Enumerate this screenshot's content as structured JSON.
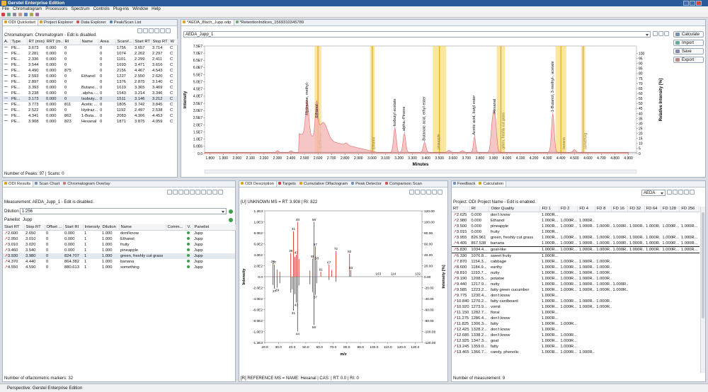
{
  "app": {
    "title": "Gerstel Enterprise Edition"
  },
  "menu": [
    "File",
    "Chromatogram",
    "Processors",
    "Spectrum",
    "Controls",
    "Plug-ins",
    "Window",
    "Help"
  ],
  "tl": {
    "tabs": [
      "ODI Quickstart",
      "Project Explorer",
      "Data Explorer",
      "Peak/Scan List"
    ],
    "info": "Chromatogram: Chromatogram - Edit is disabled.",
    "cols": [
      "A.",
      "Type",
      "RT (min)",
      "RRT (m...",
      "RI",
      "Name",
      "Area",
      "Scan#...",
      "Start RT",
      "Stop RT",
      "W"
    ],
    "rows": [
      [
        "",
        "PE...",
        "3.673",
        "0.000",
        "0",
        "",
        "0",
        "1756",
        "3.657",
        "3.714",
        "C"
      ],
      [
        "",
        "PE...",
        "2.281",
        "0.000",
        "0",
        "",
        "0",
        "1074",
        "2.262",
        "2.297",
        "C"
      ],
      [
        "",
        "PE...",
        "2.336",
        "0.000",
        "0",
        "",
        "0",
        "1101",
        "2.299",
        "2.411",
        "C"
      ],
      [
        "",
        "PE...",
        "3.544",
        "0.000",
        "0",
        "",
        "0",
        "1693",
        "3.471",
        "3.616",
        "C"
      ],
      [
        "",
        "PE...",
        "4.490",
        "0.000",
        "875",
        "",
        "0",
        "2156",
        "4.467",
        "4.543",
        "C"
      ],
      [
        "",
        "PE...",
        "2.593",
        "0.000",
        "0",
        "Ethanol",
        "0",
        "1227",
        "2.550",
        "2.620",
        "C"
      ],
      [
        "",
        "PE...",
        "2.897",
        "0.000",
        "0",
        "",
        "0",
        "1376",
        "2.875",
        "3.140",
        "C"
      ],
      [
        "",
        "PE...",
        "3.393",
        "0.000",
        "0",
        "Butano...",
        "0",
        "1619",
        "3.365",
        "3.469",
        "C"
      ],
      [
        "",
        "PE...",
        "3.238",
        "0.000",
        "0",
        ".alpha.-...",
        "0",
        "1543",
        "3.214",
        "3.346",
        "C"
      ],
      [
        "",
        "PE...",
        "3.173",
        "0.000",
        "0",
        "Isobuty...",
        "0",
        "1511",
        "3.146",
        "3.212",
        "C"
      ],
      [
        "",
        "PE...",
        "3.773",
        "0.000",
        "811",
        "Acetic ...",
        "0",
        "1805",
        "3.742",
        "3.845",
        "C"
      ],
      [
        "",
        "PE...",
        "2.522",
        "0.000",
        "0",
        "Hydraz...",
        "0",
        "1192",
        "2.497",
        "2.538",
        "C"
      ],
      [
        "",
        "PE...",
        "4.341",
        "0.000",
        "862",
        "1-Buta...",
        "0",
        "2083",
        "4.306",
        "4.453",
        "C"
      ],
      [
        "",
        "PE...",
        "3.908",
        "0.000",
        "823",
        "Hexanal",
        "0",
        "1871",
        "3.875",
        "4.059",
        "C"
      ]
    ],
    "footer": "Number of Peaks: 97 | Scans: 0"
  },
  "chrom": {
    "tabs": [
      "*AEDA_8fach_Jupp.odp",
      "*RetentionIndices_1569310345789"
    ],
    "combo": "AEDA_Jupp_1",
    "buttons": [
      "Calculate",
      "Import",
      "Save",
      "Export"
    ],
    "ylabel": "Intensity",
    "y2label": "Relative Intensity [%]",
    "xlabel": "Minutes",
    "yticks": [
      "0.0",
      "5.0E6",
      "1.0E7",
      "1.5E7",
      "2.0E7",
      "2.5E7",
      "3.0E7",
      "3.5E7",
      "4.0E7",
      "4.5E7",
      "5.0E7",
      "5.5E7",
      "6.0E7",
      "6.5E7",
      "7.0E7",
      "7.5E7"
    ],
    "y2ticks": [
      "0",
      "5",
      "10",
      "15",
      "20",
      "25",
      "30",
      "35",
      "40",
      "45",
      "50",
      "55",
      "60",
      "65",
      "70",
      "75",
      "80",
      "85",
      "90",
      "95",
      "100"
    ],
    "xticks": [
      "1.800",
      "1.900",
      "2.000",
      "2.100",
      "2.200",
      "2.300",
      "2.400",
      "2.500",
      "2.600",
      "2.700",
      "2.800",
      "2.900",
      "3.000",
      "3.100",
      "3.200",
      "3.300",
      "3.400",
      "3.500",
      "3.600",
      "3.700",
      "3.800",
      "3.900",
      "4.000",
      "4.100",
      "4.200",
      "4.300",
      "4.400",
      "4.500",
      "4.600",
      "4.700",
      "4.800",
      "4.900"
    ],
    "labels": [
      "Hydrazine, methyl-",
      "Ethanol",
      "Isobutyl acetate",
      ".alpha.-Pinene",
      "Butanoic acid, ethyl ester",
      "Acetic acid, butyl ester",
      "Hexanal",
      "1-Butanol, 3-methyl-, acetate"
    ],
    "odor": [
      "dont'know",
      "Ethanol",
      "pineapple",
      "fruity",
      "green, freshly cut grass",
      "banana",
      "something"
    ]
  },
  "odi": {
    "tabs": [
      "ODI Results",
      "Scan Chart",
      "Chromatogram Overlay"
    ],
    "info": "Measurement: AEDA_Jupp_1 - Edit is disabled.",
    "dilution_label": "Dilution",
    "dilution": "1:256",
    "panelist_label": "Panelist",
    "panelist": "Jupp",
    "cols": [
      "Start RT",
      "Stop RT",
      "Offset ...",
      "Start RI",
      "Intensity",
      "Dilution",
      "Name",
      "Comm...",
      "V.",
      "Panelist"
    ],
    "rows": [
      [
        "2.600",
        "2.650",
        "0",
        "0.000",
        "1",
        "1.000",
        "dont'know",
        "",
        "",
        "Jupp"
      ],
      [
        "2.950",
        "3.010",
        "0",
        "0.000",
        "1",
        "1.000",
        "Ethanol",
        "",
        "",
        "Jupp"
      ],
      [
        "3.010",
        "3.020",
        "0",
        "0.000",
        "1",
        "1.000",
        "fruity",
        "",
        "",
        "Jupp"
      ],
      [
        "3.460",
        "3.540",
        "0",
        "0.000",
        "1",
        "1.000",
        "pineapple",
        "",
        "",
        "Jupp"
      ],
      [
        "3.930",
        "3.980",
        "0",
        "824.707",
        "1",
        "1.000",
        "green, freshly cut grass",
        "",
        "",
        "Jupp"
      ],
      [
        "4.370",
        "4.440",
        "0",
        "864.382",
        "1",
        "1.000",
        "banana",
        "",
        "",
        "Jupp"
      ],
      [
        "4.550",
        "4.590",
        "0",
        "880.613",
        "1",
        "1.000",
        "something",
        "",
        "",
        "Jupp"
      ]
    ],
    "footer": "Number of olfactometric markers: 32"
  },
  "ms": {
    "tabs": [
      "ODI Description",
      "Targets",
      "Cumulative Olfactogram",
      "Peak Detector",
      "Comparison Scan"
    ],
    "info": "[U] UNKNOWN MS = RT: 3.908 | RI: 822",
    "ylabel": "Intensity",
    "y2label": "Intensity [%]",
    "xlabel": "m/z",
    "yticks": [
      "1.2E3",
      "1.0E3",
      "8.0E2",
      "6.0E2",
      "4.0E2",
      "2.0E2",
      "0.0",
      "-2.0E2",
      "-4.0E2",
      "-6.0E2",
      "-8.0E2",
      "-1.0E3",
      "-1.2E3"
    ],
    "y2ticks": [
      "120.00",
      "100.00",
      "80.00",
      "60.00",
      "40.00",
      "20.00",
      "0.00",
      "-20.00",
      "-40.00",
      "-60.00",
      "-80.00",
      "-100.00",
      "-120.00"
    ],
    "xticks": [
      "20.0",
      "30.0",
      "40.0",
      "50.0",
      "60.0",
      "70.0",
      "80.0",
      "90.0",
      "100.0",
      "110.0",
      "120.0",
      "130.0"
    ],
    "upper": [
      {
        "mz": 26,
        "v": 240,
        "l": "26"
      },
      {
        "mz": 27,
        "v": 220,
        "l": "27"
      },
      {
        "mz": 29,
        "v": 130
      },
      {
        "mz": 31,
        "v": 90
      },
      {
        "mz": 39,
        "v": 430,
        "l": "39"
      },
      {
        "mz": 41,
        "v": 830,
        "l": "41"
      },
      {
        "mz": 42,
        "v": 360
      },
      {
        "mz": 43,
        "v": 400,
        "l": "43"
      },
      {
        "mz": 44,
        "v": 1000,
        "l": "44"
      },
      {
        "mz": 45,
        "v": 320
      },
      {
        "mz": 53,
        "v": 110
      },
      {
        "mz": 55,
        "v": 330,
        "l": "55"
      },
      {
        "mz": 56,
        "v": 1000,
        "l": "56"
      },
      {
        "mz": 57,
        "v": 550,
        "l": "57"
      },
      {
        "mz": 58,
        "v": 300,
        "l": "58"
      },
      {
        "mz": 61,
        "v": 90,
        "l": "61"
      },
      {
        "mz": 67,
        "v": 220,
        "l": "67"
      },
      {
        "mz": 69,
        "v": 120
      },
      {
        "mz": 72,
        "v": 470,
        "l": "72"
      },
      {
        "mz": 82,
        "v": 420,
        "l": "82"
      },
      {
        "mz": 83,
        "v": 120,
        "l": "83"
      },
      {
        "mz": 103,
        "v": 10,
        "l": "103"
      },
      {
        "mz": 114,
        "v": 10,
        "l": "114"
      },
      {
        "mz": 132,
        "v": 10,
        "l": "132"
      }
    ],
    "lower": [
      {
        "mz": 26,
        "v": -150
      },
      {
        "mz": 27,
        "v": -220,
        "l": "27"
      },
      {
        "mz": 29,
        "v": -200,
        "l": "29"
      },
      {
        "mz": 31,
        "v": -120
      },
      {
        "mz": 39,
        "v": -290
      },
      {
        "mz": 40,
        "v": -230
      },
      {
        "mz": 41,
        "v": -620,
        "l": "41"
      },
      {
        "mz": 42,
        "v": -320
      },
      {
        "mz": 43,
        "v": -470,
        "l": "43"
      },
      {
        "mz": 44,
        "v": -1000,
        "l": "44"
      },
      {
        "mz": 45,
        "v": -160
      },
      {
        "mz": 53,
        "v": -140
      },
      {
        "mz": 55,
        "v": -280
      },
      {
        "mz": 56,
        "v": -880,
        "l": "56"
      },
      {
        "mz": 57,
        "v": -330,
        "l": "57"
      },
      {
        "mz": 58,
        "v": -120
      },
      {
        "mz": 67,
        "v": -60
      },
      {
        "mz": 72,
        "v": -90
      }
    ],
    "footer": "[R] REFERENCE MS = NAME: Hexanal | CAS: | RT: 0.0 | RI: 0"
  },
  "fb": {
    "tabs": [
      "Feedback",
      "Calculation"
    ],
    "combo": "AEDA",
    "info": "Project: ODI Project Name - Edit is enabled.",
    "cols": [
      "RT",
      "RI",
      "Odor Quality",
      "FD 1",
      "FD 2",
      "FD 4",
      "FD 8",
      "FD 16",
      "FD 32",
      "FD 64",
      "FD 128",
      "FD 256"
    ],
    "rows": [
      [
        "2.625",
        "0.000",
        "don't know",
        "1.000R...",
        "",
        "",
        "",
        "",
        "",
        "",
        "",
        ""
      ],
      [
        "2.980",
        "0.000",
        "Ethanol",
        "1.000R...",
        "1.000R...",
        "1.000R...",
        "",
        "",
        "",
        "",
        "",
        ""
      ],
      [
        "3.500",
        "0.000",
        "pineapple",
        "1.000R...",
        "1.000R...",
        "1.000R...",
        "1.000R...",
        "1.000R...",
        "1.000R...",
        "1.000R...",
        "1.000R...",
        "1.000R..."
      ],
      [
        "3.015",
        "0.000",
        "fruity",
        "1.000R...",
        "",
        "",
        "",
        "",
        "",
        "",
        "",
        ""
      ],
      [
        "3.955",
        "826.961",
        "green, freshly cut grass",
        "1.000R...",
        "1.000R...",
        "1.000R...",
        "1.000R...",
        "1.000R...",
        "1.000R...",
        "1.000R...",
        "1.000R...",
        "1.000R..."
      ],
      [
        "4.405",
        "867.538",
        "banana",
        "1.000R...",
        "1.000R...",
        "1.000R...",
        "1.000R...",
        "1.000R...",
        "1.000R...",
        "1.000R...",
        "1.000R...",
        "1.000R..."
      ],
      [
        "5.830",
        "1034.4...",
        "goat-like",
        "1.000R...",
        "1.000R...",
        "1.000R...",
        "1.000R...",
        "1.000R...",
        "1.000R...",
        "1.000R...",
        "1.000R...",
        "1.000R..."
      ],
      [
        "6.330",
        "1076.8...",
        "sweet fruity",
        "1.000R...",
        "",
        "",
        "",
        "",
        "",
        "",
        "",
        ""
      ],
      [
        "7.870",
        "1154.3...",
        "cabbage",
        "1.000R...",
        "1.000R...",
        "1.000R...",
        "1.000R...",
        "",
        "",
        "",
        "",
        ""
      ],
      [
        "8.600",
        "1184.9...",
        "earthy",
        "1.000R...",
        "1.000R...",
        "1.000R...",
        "1.000R...",
        "",
        "",
        "",
        "",
        ""
      ],
      [
        "8.810",
        "1193.7...",
        "nutty",
        "1.000R...",
        "1.000R...",
        "1.000R...",
        "1.000R...",
        "",
        "",
        "",
        "",
        ""
      ],
      [
        "9.190",
        "1208.5...",
        "potatoe",
        "1.000R...",
        "1.000R...",
        "1.000R...",
        "1.000R...",
        "",
        "",
        "",
        "",
        ""
      ],
      [
        "9.440",
        "1217.9...",
        "nutty",
        "1.000R...",
        "1.000R...",
        "1.000R...",
        "1.000R...",
        "1.000R...",
        "",
        "",
        "",
        ""
      ],
      [
        "9.585",
        "1223.2...",
        "fatty green cucumber",
        "1.000R...",
        "1.000R...",
        "1.000R...",
        "1.000R...",
        "1.000R...",
        "",
        "",
        "",
        ""
      ],
      [
        "9.775",
        "1230.4...",
        "don't know",
        "1.000R...",
        "",
        "",
        "",
        "",
        "",
        "",
        "",
        ""
      ],
      [
        "10.840",
        "1270.2...",
        "fatty cardboard",
        "1.000R...",
        "1.000R...",
        "1.000R...",
        "1.000R...",
        "",
        "",
        "",
        "",
        ""
      ],
      [
        "10.920",
        "1273.9...",
        "vomit",
        "1.000R...",
        "1.000R...",
        "1.000R...",
        "1.000R...",
        "",
        "",
        "",
        "",
        ""
      ],
      [
        "11.150",
        "1282.7...",
        "floral",
        "1.000R...",
        "",
        "",
        "",
        "",
        "",
        "",
        "",
        ""
      ],
      [
        "11.275",
        "1286.4...",
        "don't know",
        "1.000R...",
        "",
        "",
        "",
        "",
        "",
        "",
        "",
        ""
      ],
      [
        "11.825",
        "1306.3...",
        "fatty",
        "1.000R...",
        "1.000R...",
        "",
        "",
        "",
        "",
        "",
        "",
        ""
      ],
      [
        "12.425",
        "1328.2...",
        "don't know",
        "1.000R...",
        "",
        "",
        "",
        "",
        "",
        "",
        "",
        ""
      ],
      [
        "12.685",
        "1338.2...",
        "don't know",
        "1.000R...",
        "1.000R...",
        "",
        "",
        "",
        "",
        "",
        "",
        ""
      ],
      [
        "12.925",
        "1347.3...",
        "goat",
        "1.000R...",
        "1.000R...",
        "",
        "",
        "",
        "",
        "",
        "",
        ""
      ],
      [
        "13.245",
        "1359.0...",
        "fatty",
        "1.000R...",
        "1.000R...",
        "",
        "",
        "",
        "",
        "",
        "",
        ""
      ],
      [
        "13.465",
        "1366.7...",
        "candy, phenolic",
        "1.000R...",
        "1.000R...",
        "1.000R...",
        "",
        "",
        "",
        "",
        "",
        ""
      ]
    ],
    "footer": "Number of measurement: 9"
  },
  "status": "Perspective: Gerstel Enterprise Edition"
}
